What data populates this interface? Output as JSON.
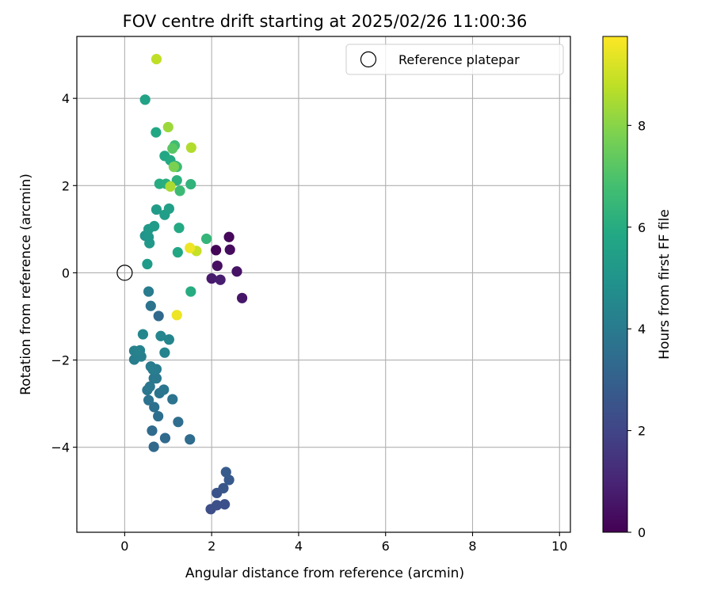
{
  "chart_data": {
    "type": "scatter",
    "title": "FOV centre drift starting at 2025/02/26 11:00:36",
    "xlabel": "Angular distance from reference (arcmin)",
    "ylabel": "Rotation from reference (arcmin)",
    "xlim": [
      -1.1,
      10.25
    ],
    "ylim": [
      -5.95,
      5.42
    ],
    "xticks": [
      0,
      2,
      4,
      6,
      8,
      10
    ],
    "yticks": [
      -4,
      -2,
      0,
      2,
      4
    ],
    "xtick_labels": [
      "0",
      "2",
      "4",
      "6",
      "8",
      "10"
    ],
    "ytick_labels": [
      "−4",
      "−2",
      "0",
      "2",
      "4"
    ],
    "grid": true,
    "legend": {
      "position": "top-right",
      "entries": [
        "Reference platepar"
      ]
    },
    "reference_point": {
      "x": 0,
      "y": 0
    },
    "colorbar": {
      "label": "Hours from first FF file",
      "range": [
        0,
        9.75
      ],
      "ticks": [
        0,
        2,
        4,
        6,
        8
      ],
      "tick_labels": [
        "0",
        "2",
        "4",
        "6",
        "8"
      ],
      "colormap": "viridis"
    },
    "points": [
      {
        "x": 2.1,
        "y": 0.52,
        "t": 0.1
      },
      {
        "x": 2.4,
        "y": 0.82,
        "t": 0.2
      },
      {
        "x": 2.42,
        "y": 0.53,
        "t": 0.3
      },
      {
        "x": 2.13,
        "y": 0.16,
        "t": 0.4
      },
      {
        "x": 2.58,
        "y": 0.03,
        "t": 0.5
      },
      {
        "x": 2.7,
        "y": -0.58,
        "t": 0.6
      },
      {
        "x": 2.0,
        "y": -0.13,
        "t": 0.7
      },
      {
        "x": 2.2,
        "y": -0.16,
        "t": 0.8
      },
      {
        "x": 1.98,
        "y": -5.42,
        "t": 2.3
      },
      {
        "x": 2.12,
        "y": -5.33,
        "t": 2.35
      },
      {
        "x": 2.3,
        "y": -5.31,
        "t": 2.4
      },
      {
        "x": 2.12,
        "y": -5.05,
        "t": 2.5
      },
      {
        "x": 2.27,
        "y": -4.94,
        "t": 2.6
      },
      {
        "x": 2.4,
        "y": -4.75,
        "t": 2.7
      },
      {
        "x": 2.33,
        "y": -4.57,
        "t": 2.8
      },
      {
        "x": 0.67,
        "y": -3.99,
        "t": 3.3
      },
      {
        "x": 0.63,
        "y": -3.62,
        "t": 3.4
      },
      {
        "x": 0.93,
        "y": -3.79,
        "t": 3.35
      },
      {
        "x": 1.5,
        "y": -3.82,
        "t": 3.45
      },
      {
        "x": 1.23,
        "y": -3.42,
        "t": 3.5
      },
      {
        "x": 0.77,
        "y": -3.29,
        "t": 3.55
      },
      {
        "x": 0.68,
        "y": -3.08,
        "t": 3.6
      },
      {
        "x": 0.55,
        "y": -2.92,
        "t": 3.65
      },
      {
        "x": 1.1,
        "y": -2.9,
        "t": 3.7
      },
      {
        "x": 0.8,
        "y": -2.76,
        "t": 3.75
      },
      {
        "x": 0.9,
        "y": -2.68,
        "t": 3.8
      },
      {
        "x": 0.52,
        "y": -2.69,
        "t": 3.82
      },
      {
        "x": 0.58,
        "y": -2.61,
        "t": 3.85
      },
      {
        "x": 0.67,
        "y": -2.42,
        "t": 3.9
      },
      {
        "x": 0.73,
        "y": -2.42,
        "t": 3.95
      },
      {
        "x": 0.6,
        "y": -2.15,
        "t": 4.0
      },
      {
        "x": 0.73,
        "y": -2.21,
        "t": 4.05
      },
      {
        "x": 0.65,
        "y": -2.22,
        "t": 4.1
      },
      {
        "x": 0.22,
        "y": -1.99,
        "t": 4.15
      },
      {
        "x": 0.38,
        "y": -1.92,
        "t": 4.2
      },
      {
        "x": 0.22,
        "y": -1.79,
        "t": 4.25
      },
      {
        "x": 0.35,
        "y": -1.78,
        "t": 4.3
      },
      {
        "x": 0.92,
        "y": -1.83,
        "t": 4.35
      },
      {
        "x": 1.02,
        "y": -1.53,
        "t": 4.4
      },
      {
        "x": 0.83,
        "y": -1.45,
        "t": 4.45
      },
      {
        "x": 0.42,
        "y": -1.41,
        "t": 4.5
      },
      {
        "x": 0.78,
        "y": -0.99,
        "t": 3.3
      },
      {
        "x": 0.6,
        "y": -0.76,
        "t": 3.7
      },
      {
        "x": 0.55,
        "y": -0.43,
        "t": 4.0
      },
      {
        "x": 0.52,
        "y": 0.2,
        "t": 5.3
      },
      {
        "x": 0.57,
        "y": 0.68,
        "t": 5.2
      },
      {
        "x": 0.47,
        "y": 0.85,
        "t": 5.0
      },
      {
        "x": 0.55,
        "y": 0.82,
        "t": 5.1
      },
      {
        "x": 0.55,
        "y": 1.0,
        "t": 5.2
      },
      {
        "x": 0.68,
        "y": 1.07,
        "t": 5.3
      },
      {
        "x": 0.92,
        "y": 1.33,
        "t": 5.4
      },
      {
        "x": 0.73,
        "y": 1.45,
        "t": 5.35
      },
      {
        "x": 1.02,
        "y": 1.47,
        "t": 5.45
      },
      {
        "x": 1.22,
        "y": 0.47,
        "t": 5.8
      },
      {
        "x": 1.25,
        "y": 1.03,
        "t": 5.9
      },
      {
        "x": 1.52,
        "y": -0.43,
        "t": 6.0
      },
      {
        "x": 1.88,
        "y": 0.78,
        "t": 6.4
      },
      {
        "x": 0.8,
        "y": 2.04,
        "t": 6.0
      },
      {
        "x": 0.95,
        "y": 2.04,
        "t": 6.1
      },
      {
        "x": 1.2,
        "y": 2.12,
        "t": 6.2
      },
      {
        "x": 1.27,
        "y": 1.88,
        "t": 6.6
      },
      {
        "x": 1.52,
        "y": 2.03,
        "t": 6.3
      },
      {
        "x": 0.92,
        "y": 2.68,
        "t": 5.8
      },
      {
        "x": 1.05,
        "y": 2.58,
        "t": 5.9
      },
      {
        "x": 1.17,
        "y": 2.45,
        "t": 6.4
      },
      {
        "x": 1.2,
        "y": 2.43,
        "t": 6.6
      },
      {
        "x": 1.15,
        "y": 2.92,
        "t": 6.7
      },
      {
        "x": 1.1,
        "y": 2.85,
        "t": 7.2
      },
      {
        "x": 1.13,
        "y": 2.43,
        "t": 7.8
      },
      {
        "x": 1.05,
        "y": 1.98,
        "t": 8.5
      },
      {
        "x": 0.72,
        "y": 3.22,
        "t": 5.8
      },
      {
        "x": 0.47,
        "y": 3.97,
        "t": 5.6
      },
      {
        "x": 1.0,
        "y": 3.34,
        "t": 8.3
      },
      {
        "x": 1.53,
        "y": 2.87,
        "t": 8.6
      },
      {
        "x": 0.73,
        "y": 4.9,
        "t": 8.8
      },
      {
        "x": 1.65,
        "y": 0.5,
        "t": 8.9
      },
      {
        "x": 1.5,
        "y": 0.57,
        "t": 9.5
      },
      {
        "x": 1.2,
        "y": -0.97,
        "t": 9.5
      }
    ]
  }
}
